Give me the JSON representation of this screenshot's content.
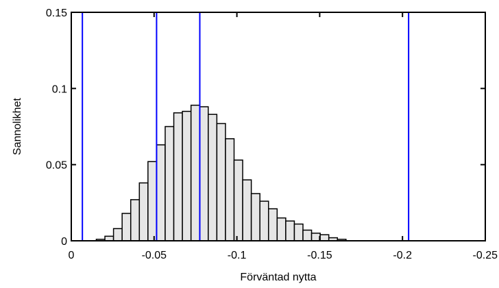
{
  "chart_data": {
    "type": "bar",
    "title": "",
    "xlabel": "Förväntad nytta",
    "ylabel": "Sannolikhet",
    "x_reversed": true,
    "xlim": [
      0,
      -0.25
    ],
    "ylim": [
      0,
      0.15
    ],
    "grid": false,
    "x_ticks": [
      {
        "value": 0,
        "label": "0"
      },
      {
        "value": -0.05,
        "label": "-0.05"
      },
      {
        "value": -0.1,
        "label": "-0.1"
      },
      {
        "value": -0.15,
        "label": "-0.15"
      },
      {
        "value": -0.2,
        "label": "-0.2"
      },
      {
        "value": -0.25,
        "label": "-0.25"
      }
    ],
    "y_ticks": [
      {
        "value": 0,
        "label": "0"
      },
      {
        "value": 0.05,
        "label": "0.05"
      },
      {
        "value": 0.1,
        "label": "0.1"
      },
      {
        "value": 0.15,
        "label": "0.15"
      }
    ],
    "bin_width": -0.0052,
    "bin_start": -0.0151,
    "histogram": [
      0.001,
      0.003,
      0.008,
      0.018,
      0.027,
      0.038,
      0.052,
      0.063,
      0.075,
      0.084,
      0.085,
      0.089,
      0.088,
      0.083,
      0.077,
      0.067,
      0.053,
      0.04,
      0.031,
      0.026,
      0.021,
      0.015,
      0.013,
      0.011,
      0.007,
      0.005,
      0.004,
      0.002,
      0.001
    ],
    "colors": {
      "bars": "#e6e6e6",
      "bar_edge": "#000000",
      "vlines": "#0000ff"
    },
    "vertical_lines": [
      -0.0067,
      -0.0515,
      -0.0776,
      -0.2037
    ]
  }
}
